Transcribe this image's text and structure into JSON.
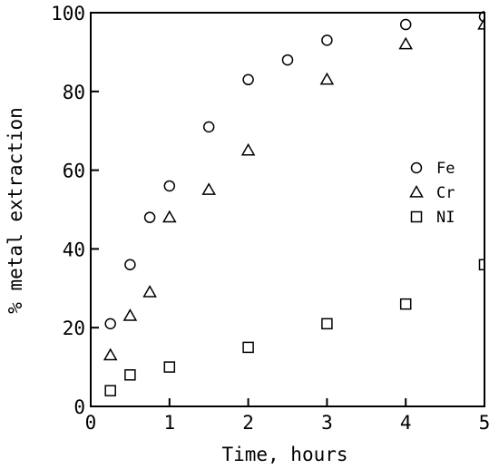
{
  "chart_data": {
    "type": "scatter",
    "title": "",
    "xlabel": "Time, hours",
    "ylabel": "% metal extraction",
    "xlim": [
      0,
      5
    ],
    "ylim": [
      0,
      100
    ],
    "xticks": [
      0,
      1,
      2,
      3,
      4,
      5
    ],
    "yticks": [
      0,
      20,
      40,
      60,
      80,
      100
    ],
    "xtick_labels": [
      "0",
      "1",
      "2",
      "3",
      "4",
      "5"
    ],
    "ytick_labels": [
      "0",
      "20",
      "40",
      "60",
      "80",
      "100"
    ],
    "grid": false,
    "legend_position": "right-middle",
    "series": [
      {
        "name": "Fe",
        "marker": "circle",
        "x": [
          0.25,
          0.5,
          0.75,
          1.0,
          1.5,
          2.0,
          2.5,
          3.0,
          4.0,
          5.0
        ],
        "y": [
          21,
          36,
          48,
          56,
          71,
          83,
          88,
          93,
          97,
          99
        ]
      },
      {
        "name": "Cr",
        "marker": "triangle",
        "x": [
          0.25,
          0.5,
          0.75,
          1.0,
          1.5,
          2.0,
          3.0,
          4.0,
          5.0
        ],
        "y": [
          13,
          23,
          29,
          48,
          55,
          65,
          83,
          92,
          97
        ]
      },
      {
        "name": "NI",
        "marker": "square",
        "x": [
          0.25,
          0.5,
          1.0,
          2.0,
          3.0,
          4.0,
          5.0
        ],
        "y": [
          4,
          8,
          10,
          15,
          21,
          26,
          36
        ]
      }
    ]
  }
}
